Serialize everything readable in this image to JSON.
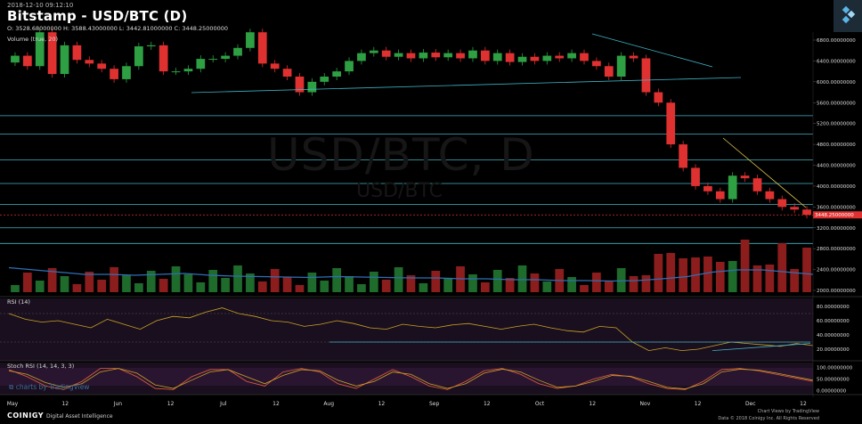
{
  "header": {
    "datetime": "2018-12-10 09:12:10",
    "title": "Bitstamp - USD/BTC (D)",
    "ohlc": "O: 3528.68000000  H: 3588.43000000  L: 3442.81000000  C: 3448.25000000",
    "volume_label": "Volume (true, 20)",
    "rsi_label": "RSI (14)",
    "stoch_label": "Stoch RSI (14, 14, 3, 3)"
  },
  "watermark": {
    "main": "USD/BTC, D",
    "sub": "USD/BTC"
  },
  "branding": {
    "tradingview": "charts by TradingView",
    "coinigy": "COINIGY",
    "coinigy_sub": "Digital Asset Intelligence",
    "footer_right_1": "Chart Views by TradingView",
    "footer_right_2": "Data © 2018 Coinigy Inc. All Rights Reserved"
  },
  "colors": {
    "up": "#2ea043",
    "down": "#e03131",
    "hline": "#3fb5c6",
    "ma": "#2f6fb5",
    "rsi": "#c9a227",
    "stoch_k": "#e45f3e",
    "stoch_d": "#c9a227",
    "price_tag": "#e03131"
  },
  "chart_data": [
    {
      "type": "candlestick",
      "title": "Bitstamp - USD/BTC (D)",
      "x_tick_labels": [
        "May",
        "12",
        "Jun",
        "12",
        "Jul",
        "12",
        "Aug",
        "12",
        "Sep",
        "12",
        "Oct",
        "12",
        "Nov",
        "12",
        "Dec",
        "12"
      ],
      "y_tick_labels": [
        "6800.00000000",
        "6400.00000000",
        "6000.00000000",
        "5600.00000000",
        "5200.00000000",
        "4800.00000000",
        "4400.00000000",
        "4000.00000000",
        "3600.00000000",
        "3200.00000000",
        "2800.00000000",
        "2400.00000000",
        "2000.00000000"
      ],
      "ylim": [
        2000,
        6800
      ],
      "last_price_label": "3448.25000000",
      "last_price": 3448.25,
      "horizontal_levels": [
        5350,
        5000,
        4500,
        4050,
        3650,
        3200,
        2900
      ],
      "close_series_approx": [
        6500,
        6300,
        6950,
        6150,
        6700,
        6420,
        6350,
        6250,
        6050,
        6300,
        6680,
        6700,
        6200,
        6200,
        6250,
        6440,
        6440,
        6500,
        6650,
        6950,
        6350,
        6250,
        6100,
        5800,
        6000,
        6100,
        6200,
        6400,
        6550,
        6600,
        6480,
        6550,
        6450,
        6560,
        6470,
        6550,
        6450,
        6600,
        6400,
        6550,
        6380,
        6480,
        6400,
        6500,
        6450,
        6550,
        6400,
        6300,
        6100,
        6500,
        6450,
        5800,
        5600,
        4800,
        4350,
        4000,
        3900,
        3750,
        4200,
        4150,
        3900,
        3750,
        3600,
        3550,
        3450
      ],
      "volume_ma_approx": [
        0.55,
        0.5,
        0.45,
        0.4,
        0.4,
        0.38,
        0.4,
        0.42,
        0.38,
        0.36,
        0.35,
        0.34,
        0.33,
        0.35,
        0.34,
        0.33,
        0.32,
        0.32,
        0.3,
        0.3,
        0.28,
        0.28,
        0.26,
        0.26,
        0.25,
        0.26,
        0.3,
        0.35,
        0.45,
        0.5,
        0.5,
        0.45,
        0.4
      ]
    },
    {
      "type": "line",
      "title": "RSI (14)",
      "y_tick_labels": [
        "80.00000000",
        "60.00000000",
        "40.00000000",
        "20.00000000"
      ],
      "ylim": [
        10,
        85
      ],
      "values_approx": [
        70,
        62,
        58,
        60,
        55,
        50,
        62,
        55,
        48,
        60,
        66,
        64,
        72,
        78,
        70,
        66,
        60,
        58,
        52,
        55,
        60,
        56,
        50,
        48,
        55,
        52,
        50,
        54,
        56,
        52,
        48,
        52,
        55,
        50,
        46,
        44,
        52,
        50,
        30,
        18,
        22,
        18,
        20,
        25,
        30,
        28,
        26,
        24,
        28,
        25
      ]
    },
    {
      "type": "line",
      "title": "Stoch RSI (14, 14, 3, 3)",
      "y_tick_labels": [
        "100.00000000",
        "50.00000000",
        "0.00000000"
      ],
      "ylim": [
        -5,
        105
      ],
      "series": [
        {
          "values_approx": [
            90,
            60,
            20,
            5,
            40,
            95,
            95,
            60,
            10,
            5,
            60,
            90,
            90,
            40,
            20,
            80,
            95,
            80,
            30,
            10,
            50,
            90,
            60,
            20,
            5,
            40,
            85,
            95,
            70,
            30,
            10,
            20,
            50,
            70,
            60,
            30,
            10,
            5,
            40,
            90,
            95,
            85,
            70,
            55,
            40
          ]
        },
        {
          "values_approx": [
            85,
            70,
            35,
            15,
            30,
            80,
            95,
            75,
            25,
            10,
            45,
            80,
            90,
            60,
            30,
            65,
            90,
            85,
            45,
            20,
            40,
            80,
            70,
            30,
            10,
            30,
            75,
            92,
            80,
            45,
            15,
            20,
            40,
            65,
            62,
            40,
            15,
            8,
            30,
            80,
            92,
            88,
            75,
            60,
            45
          ]
        }
      ]
    }
  ]
}
